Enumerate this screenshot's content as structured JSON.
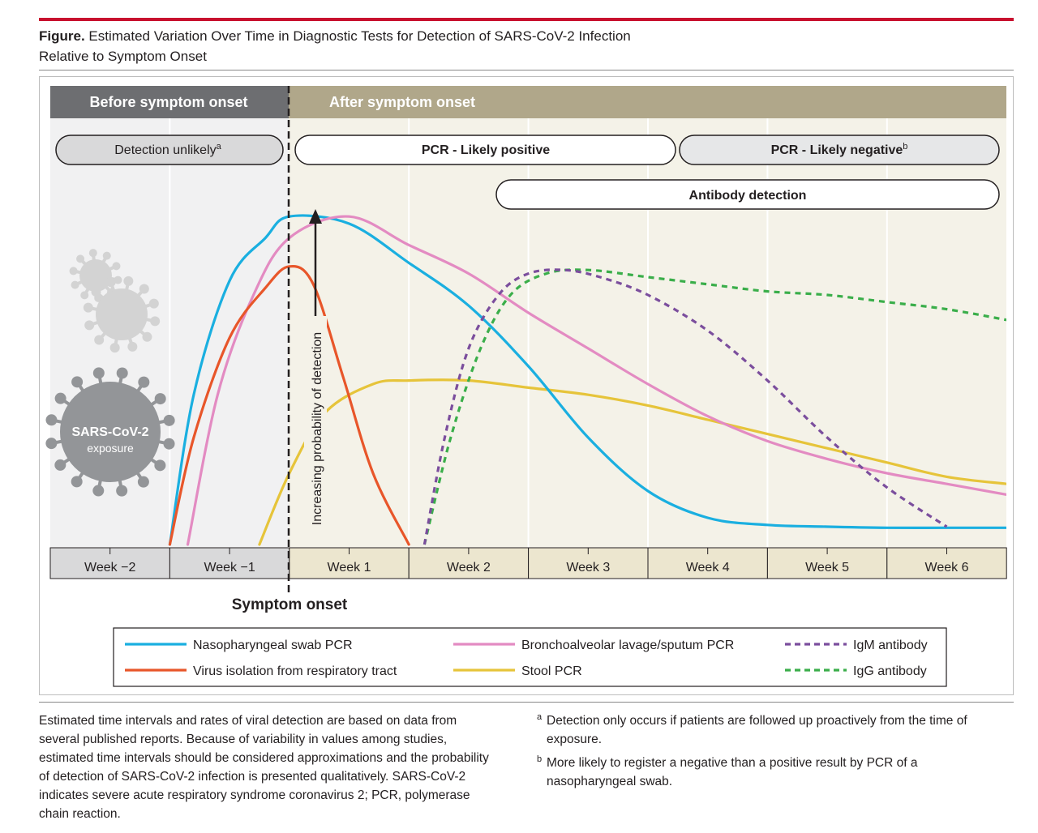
{
  "figure": {
    "label": "Figure.",
    "title_line1": " Estimated Variation Over Time in Diagnostic Tests for Detection of SARS-CoV-2 Infection",
    "title_line2": "Relative to Symptom Onset"
  },
  "colors": {
    "title_rule": "#c8102e",
    "before_header": "#6d6e71",
    "after_header": "#b0a78a",
    "before_bg": "#f1f1f2",
    "after_bg": "#f4f2e8",
    "nasopharyngeal": "#1aafe0",
    "virus_isolation": "#e8562a",
    "bronchoalveolar": "#e38bc2",
    "stool": "#e6c43a",
    "igm": "#7b4e9d",
    "igg": "#3aae4a"
  },
  "phases": {
    "before": "Before symptom onset",
    "after": "After symptom onset"
  },
  "bands": {
    "detection_unlikely": "Detection unlikely",
    "detection_unlikely_sup": "a",
    "pcr_positive": "PCR - Likely positive",
    "pcr_negative": "PCR - Likely negative",
    "pcr_negative_sup": "b",
    "antibody": "Antibody detection"
  },
  "virus_label": {
    "line1": "SARS-CoV-2",
    "line2": "exposure"
  },
  "y_arrow_label": "Increasing probability of detection",
  "symptom_onset_label": "Symptom onset",
  "chart_data": {
    "type": "line",
    "x_unit": "weeks relative to symptom onset",
    "categories": [
      "Week −2",
      "Week −1",
      "Week 1",
      "Week 2",
      "Week 3",
      "Week 4",
      "Week 5",
      "Week 6"
    ],
    "xlim": [
      -2,
      6
    ],
    "ylim": [
      0,
      1
    ],
    "y_scale": "qualitative",
    "series": [
      {
        "name": "Nasopharyngeal swab PCR",
        "color": "#1aafe0",
        "dash": false,
        "points": [
          [
            -1,
            0.0
          ],
          [
            -0.8,
            0.42
          ],
          [
            -0.5,
            0.74
          ],
          [
            -0.2,
            0.86
          ],
          [
            0,
            0.92
          ],
          [
            0.5,
            0.9
          ],
          [
            1,
            0.79
          ],
          [
            1.5,
            0.67
          ],
          [
            2,
            0.5
          ],
          [
            2.5,
            0.3
          ],
          [
            3,
            0.15
          ],
          [
            3.5,
            0.075
          ],
          [
            4,
            0.055
          ],
          [
            4.5,
            0.05
          ],
          [
            5,
            0.047
          ],
          [
            5.5,
            0.047
          ],
          [
            6,
            0.047
          ]
        ]
      },
      {
        "name": "Virus isolation from respiratory tract",
        "color": "#e8562a",
        "dash": false,
        "points": [
          [
            -1,
            0.0
          ],
          [
            -0.8,
            0.3
          ],
          [
            -0.5,
            0.58
          ],
          [
            -0.2,
            0.72
          ],
          [
            0,
            0.78
          ],
          [
            0.2,
            0.73
          ],
          [
            0.45,
            0.47
          ],
          [
            0.7,
            0.2
          ],
          [
            1.0,
            0.0
          ]
        ]
      },
      {
        "name": "Bronchoalveolar lavage/sputum PCR",
        "color": "#e38bc2",
        "dash": false,
        "points": [
          [
            -0.85,
            0.0
          ],
          [
            -0.6,
            0.42
          ],
          [
            -0.3,
            0.7
          ],
          [
            0,
            0.86
          ],
          [
            0.5,
            0.92
          ],
          [
            1,
            0.84
          ],
          [
            1.5,
            0.76
          ],
          [
            2,
            0.65
          ],
          [
            2.5,
            0.55
          ],
          [
            3,
            0.45
          ],
          [
            3.5,
            0.36
          ],
          [
            4,
            0.29
          ],
          [
            4.5,
            0.24
          ],
          [
            5,
            0.2
          ],
          [
            5.5,
            0.17
          ],
          [
            6,
            0.14
          ]
        ]
      },
      {
        "name": "Stool PCR",
        "color": "#e6c43a",
        "dash": false,
        "points": [
          [
            -0.25,
            0.0
          ],
          [
            0,
            0.2
          ],
          [
            0.3,
            0.37
          ],
          [
            0.7,
            0.45
          ],
          [
            1,
            0.46
          ],
          [
            1.5,
            0.46
          ],
          [
            2,
            0.44
          ],
          [
            2.5,
            0.42
          ],
          [
            3,
            0.39
          ],
          [
            3.5,
            0.35
          ],
          [
            4,
            0.31
          ],
          [
            4.5,
            0.27
          ],
          [
            5,
            0.23
          ],
          [
            5.5,
            0.19
          ],
          [
            6,
            0.17
          ]
        ]
      },
      {
        "name": "IgM antibody",
        "color": "#7b4e9d",
        "dash": true,
        "points": [
          [
            1.13,
            0.0
          ],
          [
            1.3,
            0.3
          ],
          [
            1.5,
            0.55
          ],
          [
            1.75,
            0.7
          ],
          [
            2,
            0.76
          ],
          [
            2.3,
            0.77
          ],
          [
            2.6,
            0.75
          ],
          [
            3,
            0.7
          ],
          [
            3.5,
            0.6
          ],
          [
            4,
            0.46
          ],
          [
            4.5,
            0.3
          ],
          [
            5,
            0.16
          ],
          [
            5.5,
            0.05
          ]
        ]
      },
      {
        "name": "IgG antibody",
        "color": "#3aae4a",
        "dash": true,
        "points": [
          [
            1.13,
            0.0
          ],
          [
            1.35,
            0.3
          ],
          [
            1.6,
            0.55
          ],
          [
            1.85,
            0.7
          ],
          [
            2.15,
            0.76
          ],
          [
            2.5,
            0.77
          ],
          [
            3,
            0.75
          ],
          [
            3.5,
            0.73
          ],
          [
            4,
            0.71
          ],
          [
            4.5,
            0.7
          ],
          [
            5,
            0.68
          ],
          [
            5.5,
            0.66
          ],
          [
            6,
            0.63
          ]
        ]
      }
    ],
    "legend_placement": "bottom",
    "grid": "vertical"
  },
  "notes": {
    "main": "Estimated time intervals and rates of viral detection are based on data from several published reports. Because of variability in values among studies, estimated time intervals should be considered approximations and the probability of detection of SARS-CoV-2 infection is presented qualitatively. SARS-CoV-2 indicates severe acute respiratory syndrome coronavirus 2; PCR, polymerase chain reaction.",
    "footnote_a_mark": "a",
    "footnote_a": "Detection only occurs if patients are followed up proactively from the time of exposure.",
    "footnote_b_mark": "b",
    "footnote_b": "More likely to register a negative than a positive result by PCR of a nasopharyngeal swab."
  }
}
